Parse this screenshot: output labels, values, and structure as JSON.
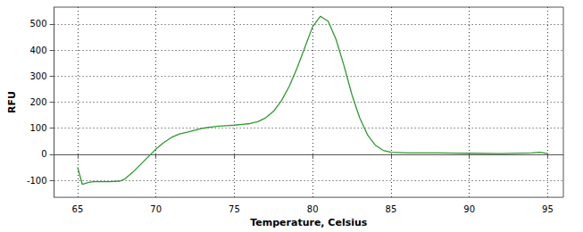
{
  "chart_data": {
    "type": "line",
    "x_label": "Temperature, Celsius",
    "y_label": "RFU",
    "x": [
      65,
      65.3,
      65.7,
      66,
      67,
      67.7,
      68,
      68.5,
      69,
      69.5,
      70,
      70.5,
      71,
      71.5,
      72,
      72.5,
      73,
      73.5,
      74,
      74.5,
      75,
      75.5,
      76,
      76.5,
      77,
      77.5,
      78,
      78.5,
      79,
      79.5,
      80,
      80.5,
      81,
      81.5,
      82,
      82.5,
      83,
      83.5,
      84,
      84.5,
      85,
      86,
      87,
      88,
      90,
      92,
      94,
      94.5,
      95
    ],
    "values": [
      -50,
      -115,
      -108,
      -105,
      -105,
      -103,
      -95,
      -70,
      -40,
      -10,
      20,
      45,
      65,
      78,
      85,
      93,
      100,
      105,
      108,
      110,
      112,
      115,
      118,
      125,
      140,
      165,
      205,
      260,
      330,
      410,
      490,
      530,
      510,
      440,
      340,
      230,
      140,
      75,
      35,
      15,
      8,
      5,
      5,
      5,
      4,
      3,
      5,
      8,
      3
    ],
    "color": "#2e9a2e",
    "xlim": [
      63.5,
      96
    ],
    "xticks": [
      65,
      70,
      75,
      80,
      85,
      90,
      95
    ],
    "ylim": [
      -165,
      565
    ],
    "yticks": [
      -100,
      0,
      100,
      200,
      300,
      400,
      500
    ],
    "grid": true,
    "marker": "none",
    "line_style": "solid"
  }
}
